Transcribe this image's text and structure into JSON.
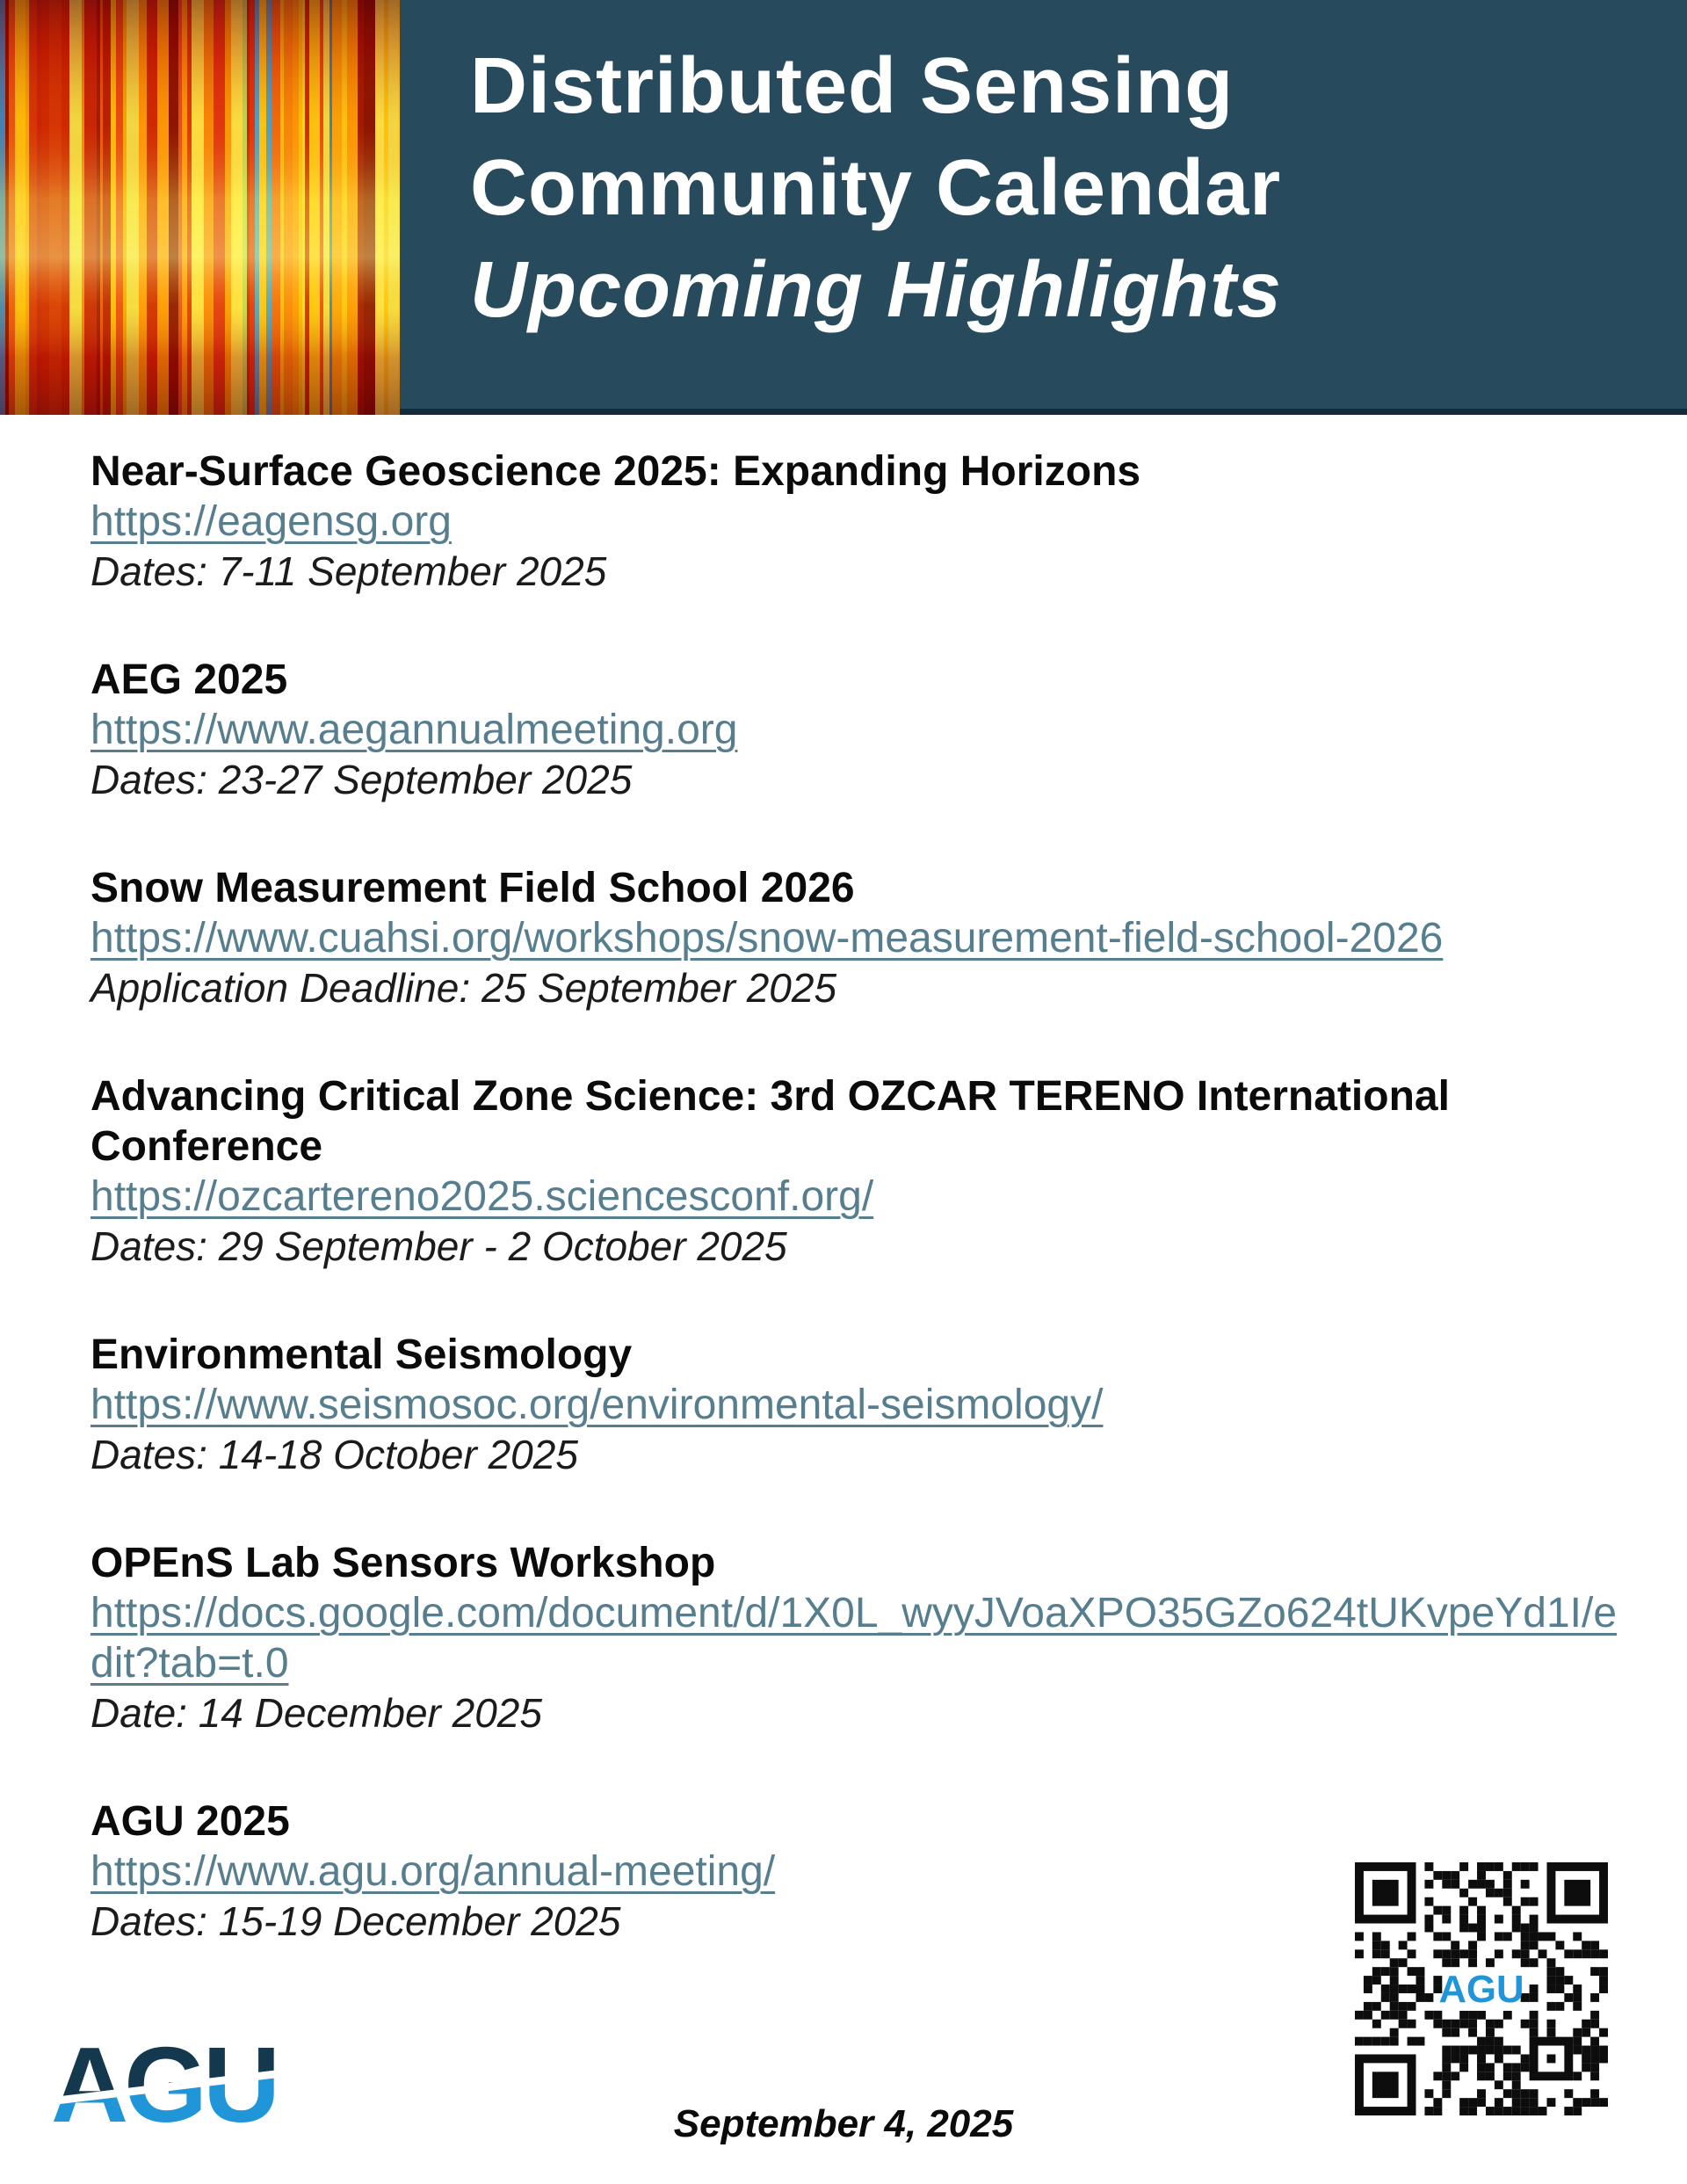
{
  "header": {
    "title_line1": "Distributed Sensing",
    "title_line2": "Community Calendar",
    "title_line3": "Upcoming Highlights"
  },
  "events": [
    {
      "heading": "Near-Surface Geoscience 2025: Expanding Horizons",
      "url": "https://eagensg.org",
      "date": "Dates: 7-11 September 2025"
    },
    {
      "heading": "AEG 2025",
      "url": "https://www.aegannualmeeting.org",
      "date": "Dates: 23-27 September 2025"
    },
    {
      "heading": "Snow Measurement Field School 2026",
      "url": "https://www.cuahsi.org/workshops/snow-measurement-field-school-2026",
      "date": "Application Deadline: 25 September 2025"
    },
    {
      "heading": "Advancing Critical Zone Science: 3rd OZCAR TERENO International Conference",
      "url": "https://ozcartereno2025.sciencesconf.org/",
      "date": "Dates: 29 September - 2 October 2025"
    },
    {
      "heading": "Environmental Seismology",
      "url": "https://www.seismosoc.org/environmental-seismology/",
      "date": "Dates: 14-18 October 2025"
    },
    {
      "heading": "OPEnS Lab Sensors Workshop",
      "url": "https://docs.google.com/document/d/1X0L_wyyJVoaXPO35GZo624tUKvpeYd1I/edit?tab=t.0",
      "date": "Date: 14 December 2025"
    },
    {
      "heading": "AGU 2025",
      "url": "https://www.agu.org/annual-meeting/",
      "date": "Dates: 15-19 December 2025"
    }
  ],
  "footer": {
    "logo_text": "AGU",
    "date": "September 4, 2025",
    "qr_center_label": "AGU"
  },
  "colors": {
    "header_bg": "#274b5d",
    "header_border": "#122b3a",
    "link": "#567e8e",
    "heading_text": "#0b0b0b",
    "date_text": "#1b1b1b",
    "logo_navy": "#14394f",
    "logo_blue": "#2095d8",
    "qr_black": "#0d0d0d"
  }
}
